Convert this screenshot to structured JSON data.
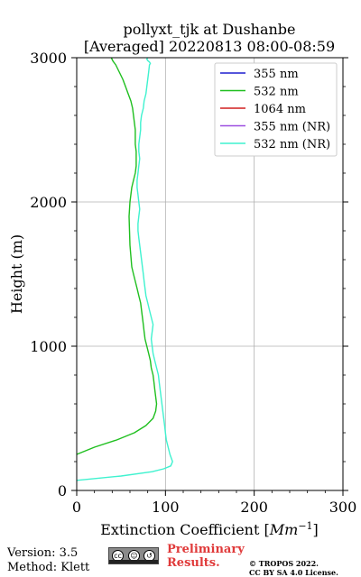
{
  "chart_data": {
    "type": "line",
    "title_line1": "pollyxt_tjk at Dushanbe",
    "title_line2": "[Averaged] 20220813 08:00-08:59",
    "xlabel": "Extinction Coefficient [Mm⁻¹]",
    "xlabel_main": "Extinction Coefficient [",
    "xlabel_unit": "Mm",
    "xlabel_exp": "−1",
    "xlabel_close": "]",
    "ylabel": "Height (m)",
    "xlim": [
      0,
      300
    ],
    "ylim": [
      0,
      3000
    ],
    "xticks": [
      0,
      100,
      200,
      300
    ],
    "yticks": [
      0,
      1000,
      2000,
      3000
    ],
    "xtick_labels": [
      "0",
      "100",
      "200",
      "300"
    ],
    "ytick_labels": [
      "0",
      "1000",
      "2000",
      "3000"
    ],
    "grid": true,
    "legend_position": "top-right",
    "series": [
      {
        "name": "355 nm",
        "color": "#1f1fcf",
        "x": [],
        "y": []
      },
      {
        "name": "532 nm",
        "color": "#1fbf1f",
        "x": [
          0,
          20,
          45,
          65,
          78,
          86,
          89,
          90,
          89,
          88,
          87,
          86,
          84,
          83,
          81,
          79,
          77,
          76,
          75,
          74,
          73,
          72,
          70,
          68,
          66,
          64,
          62,
          60,
          59,
          60,
          61,
          62,
          64,
          66,
          67,
          67,
          67,
          66,
          66,
          66,
          65,
          64,
          63,
          61,
          58,
          55,
          52,
          48,
          44,
          41,
          39
        ],
        "y": [
          250,
          300,
          350,
          400,
          450,
          500,
          550,
          600,
          650,
          700,
          750,
          800,
          850,
          900,
          950,
          1000,
          1050,
          1100,
          1150,
          1200,
          1250,
          1300,
          1350,
          1400,
          1450,
          1500,
          1550,
          1700,
          1900,
          2000,
          2050,
          2100,
          2150,
          2200,
          2250,
          2300,
          2350,
          2400,
          2450,
          2500,
          2550,
          2600,
          2650,
          2700,
          2750,
          2800,
          2850,
          2900,
          2950,
          2975,
          3000
        ]
      },
      {
        "name": "1064 nm",
        "color": "#d11f1f",
        "x": [],
        "y": []
      },
      {
        "name": "355 nm (NR)",
        "color": "#9c4fe0",
        "x": [],
        "y": []
      },
      {
        "name": "532 nm (NR)",
        "color": "#3ff2cf",
        "x": [
          0,
          50,
          85,
          98,
          106,
          108,
          105,
          103,
          101,
          100,
          99,
          98,
          97,
          96,
          95,
          94,
          93,
          92,
          90,
          88,
          86,
          85,
          84,
          85,
          86,
          84,
          82,
          80,
          78,
          77,
          76,
          75,
          74,
          73,
          72,
          71,
          70,
          69,
          69,
          70,
          71,
          70,
          69,
          68,
          68,
          69,
          70,
          71,
          70,
          70,
          71,
          72,
          72,
          73,
          75,
          76,
          78,
          79,
          80,
          81,
          82,
          83,
          82,
          80,
          79,
          80,
          79,
          78,
          77,
          76,
          75,
          74,
          73,
          72,
          71,
          70,
          69,
          68,
          67,
          66,
          65,
          64,
          63,
          62,
          61,
          60,
          59,
          58,
          57,
          56,
          55,
          54,
          53,
          52,
          51,
          50,
          49,
          48,
          47,
          46,
          45
        ],
        "y": [
          70,
          100,
          130,
          150,
          170,
          200,
          250,
          300,
          350,
          400,
          450,
          500,
          550,
          600,
          650,
          700,
          750,
          800,
          850,
          900,
          950,
          1000,
          1050,
          1100,
          1150,
          1200,
          1250,
          1300,
          1350,
          1400,
          1450,
          1500,
          1550,
          1600,
          1650,
          1700,
          1750,
          1800,
          1850,
          1900,
          1950,
          2000,
          2050,
          2100,
          2150,
          2200,
          2250,
          2300,
          2350,
          2400,
          2450,
          2500,
          2550,
          2600,
          2650,
          2700,
          2750,
          2800,
          2850,
          2900,
          2950,
          2960,
          2970,
          2980,
          2990,
          3000,
          3010,
          3020,
          3030,
          3040,
          3050,
          3060,
          3070,
          3080,
          3090,
          3100,
          3110,
          3120,
          3130,
          3140,
          3150,
          3160,
          3170,
          3180,
          3190,
          3200,
          3210,
          3220,
          3230,
          3240,
          3250,
          3260,
          3270,
          3280,
          3290,
          3300,
          3310,
          3320,
          3330,
          3340,
          3350
        ]
      }
    ]
  },
  "footer": {
    "version_line": "Version: 3.5",
    "method_line": "Method: Klett",
    "prelim_line1": "Preliminary",
    "prelim_line2": "Results.",
    "copyright_line1": "© TROPOS 2022.",
    "copyright_line2": "CC BY SA 4.0 License.",
    "cc_badge_labels": [
      "cc",
      "BY",
      "SA"
    ]
  }
}
